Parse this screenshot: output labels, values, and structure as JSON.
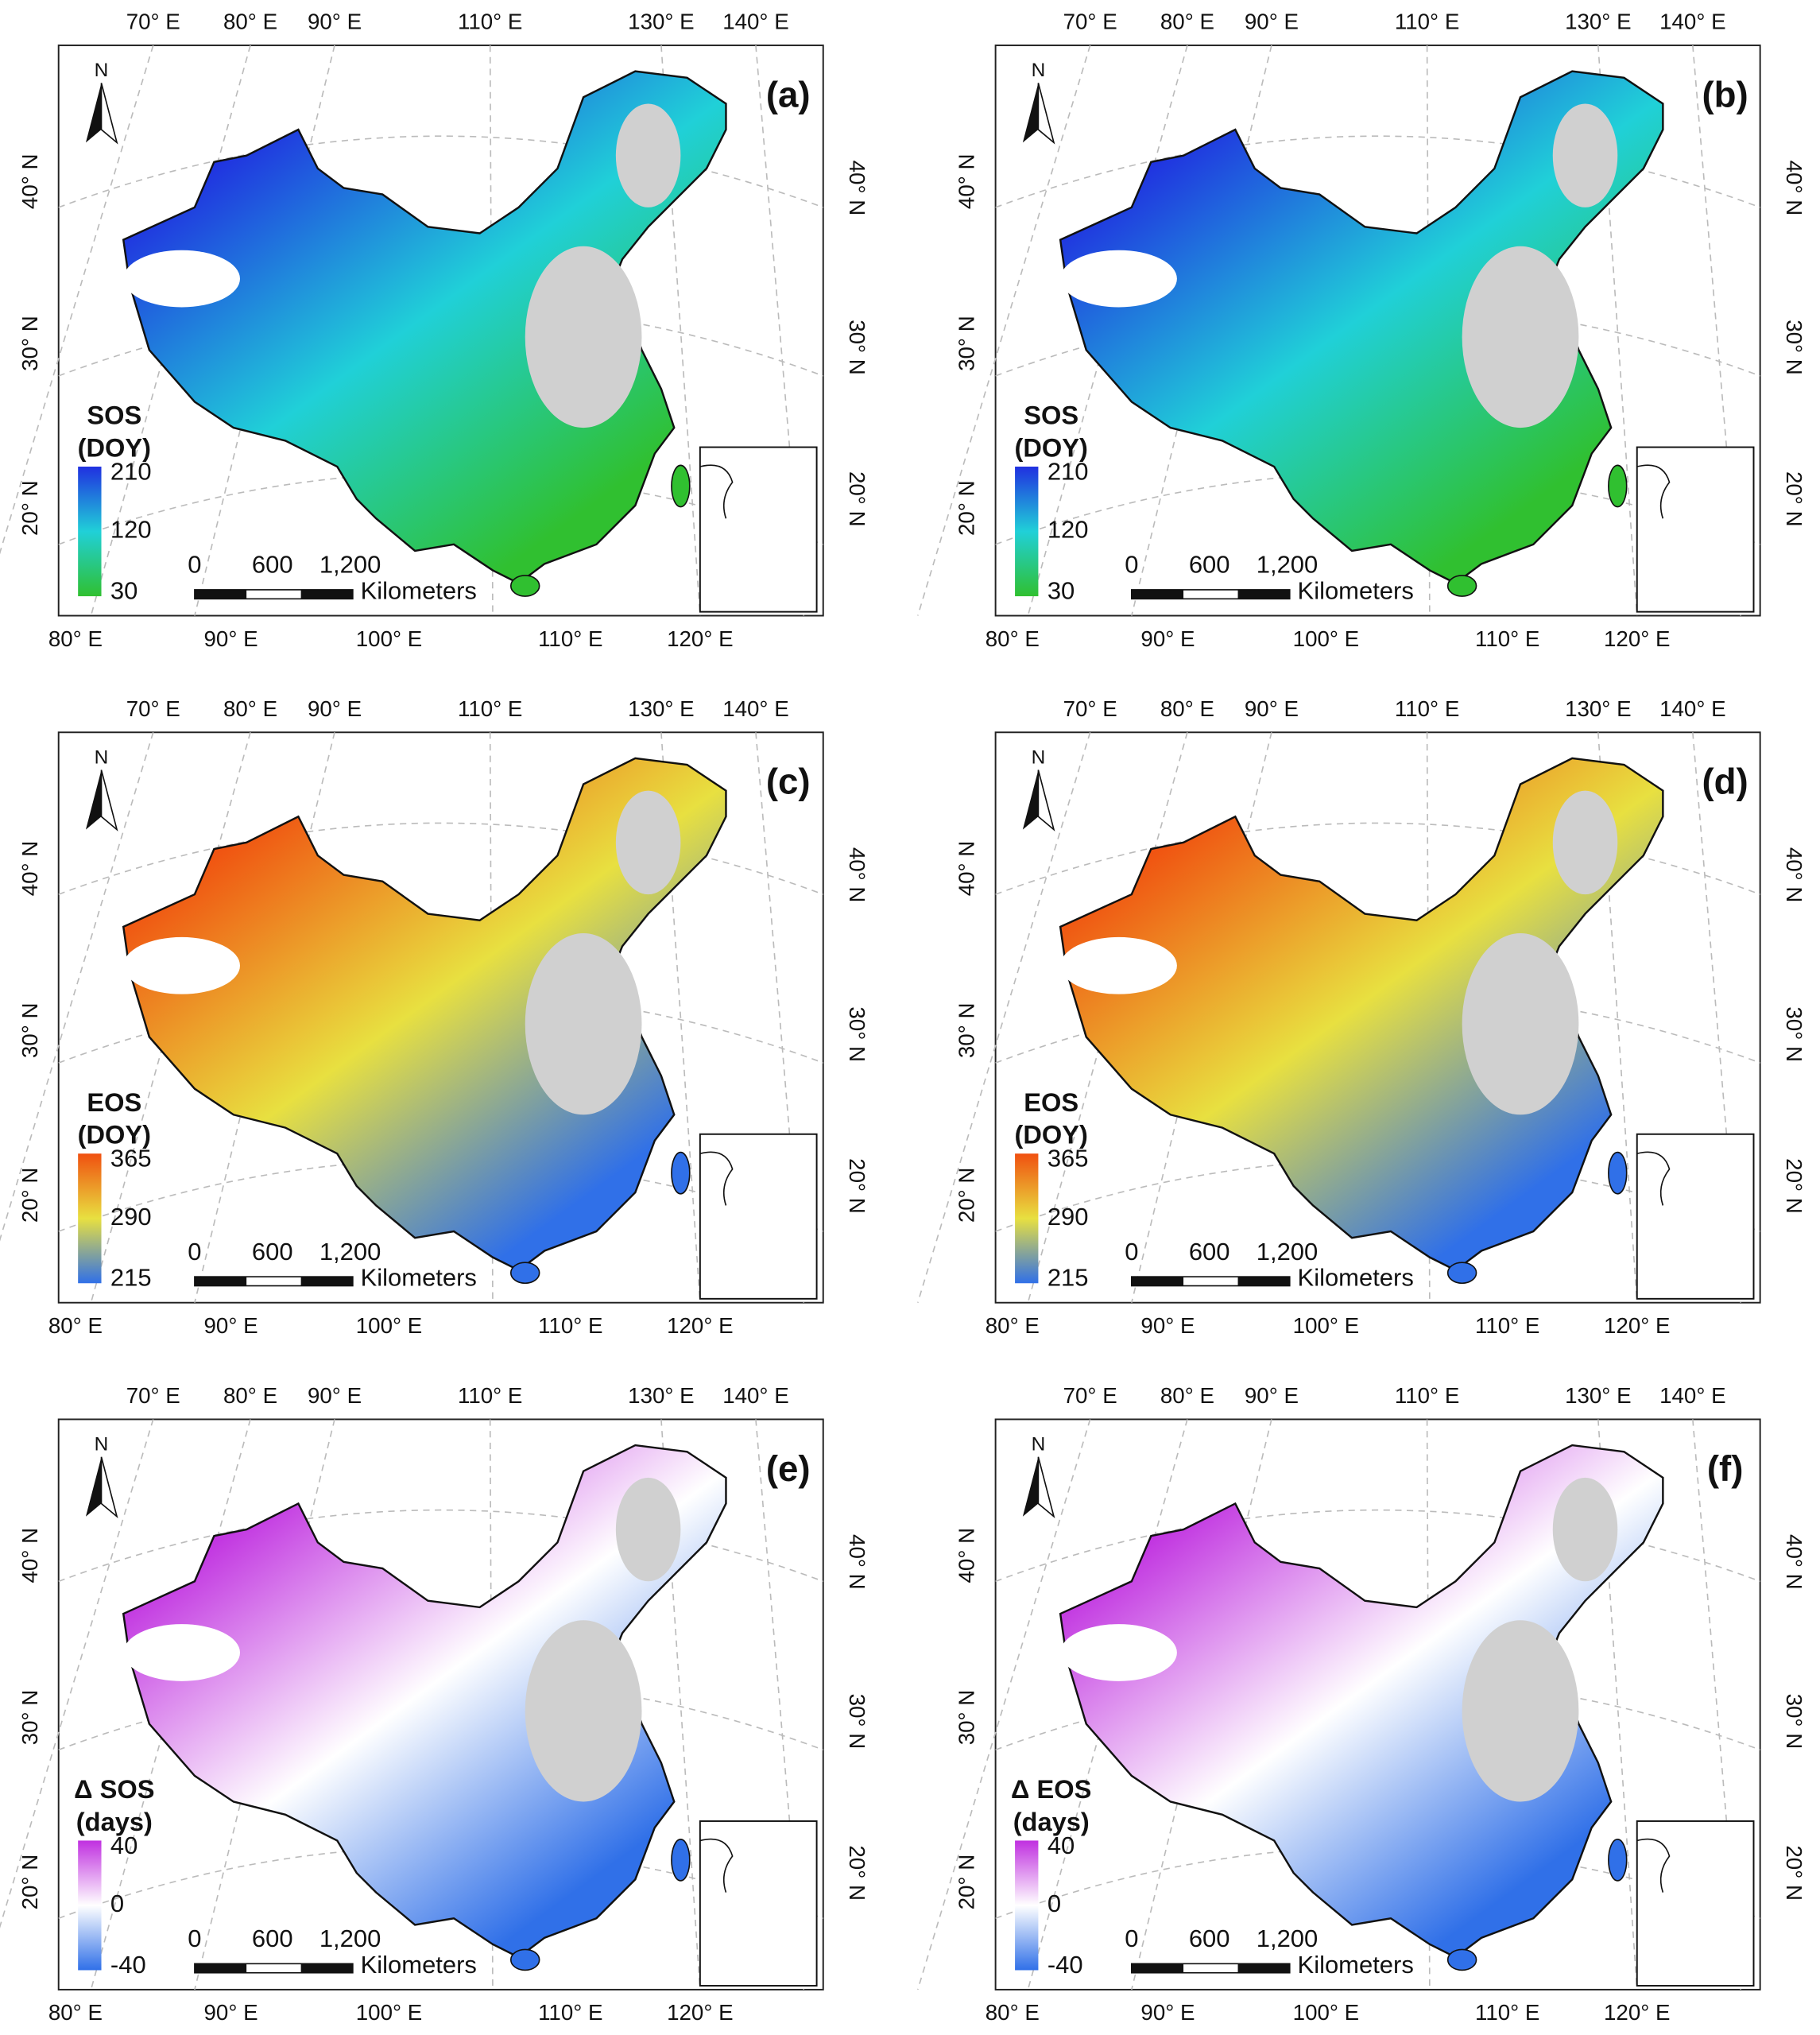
{
  "north": "N",
  "graticule": {
    "top": [
      "70° E",
      "80° E",
      "90° E",
      "110° E",
      "130° E",
      "140° E"
    ],
    "bottom": [
      "80° E",
      "90° E",
      "100° E",
      "110° E",
      "120° E"
    ],
    "left": [
      "40° N",
      "30° N",
      "20° N"
    ],
    "right": [
      "40° N",
      "30° N",
      "20° N"
    ]
  },
  "scale_bar": {
    "ticks": [
      0,
      600,
      "1,200"
    ],
    "unit": "Kilometers"
  },
  "panels": [
    {
      "label": "(a)",
      "legend_title": [
        "SOS",
        "(DOY)"
      ],
      "legend_ticks": [
        210,
        120,
        30
      ],
      "colormap": [
        "#2030e0",
        "#20d0d8",
        "#30c030"
      ]
    },
    {
      "label": "(b)",
      "legend_title": [
        "SOS",
        "(DOY)"
      ],
      "legend_ticks": [
        210,
        120,
        30
      ],
      "colormap": [
        "#2030e0",
        "#20d0d8",
        "#30c030"
      ]
    },
    {
      "label": "(c)",
      "legend_title": [
        "EOS",
        "(DOY)"
      ],
      "legend_ticks": [
        365,
        290,
        215
      ],
      "colormap": [
        "#f05010",
        "#e8e040",
        "#3070e8"
      ]
    },
    {
      "label": "(d)",
      "legend_title": [
        "EOS",
        "(DOY)"
      ],
      "legend_ticks": [
        365,
        290,
        215
      ],
      "colormap": [
        "#f05010",
        "#e8e040",
        "#3070e8"
      ]
    },
    {
      "label": "(e)",
      "legend_title": [
        "Δ SOS",
        "(days)"
      ],
      "legend_ticks": [
        40,
        0,
        -40
      ],
      "colormap": [
        "#c030e0",
        "#ffffff",
        "#3070e8"
      ]
    },
    {
      "label": "(f)",
      "legend_title": [
        "Δ EOS",
        "(days)"
      ],
      "legend_ticks": [
        40,
        0,
        -40
      ],
      "colormap": [
        "#c030e0",
        "#ffffff",
        "#3070e8"
      ]
    }
  ]
}
